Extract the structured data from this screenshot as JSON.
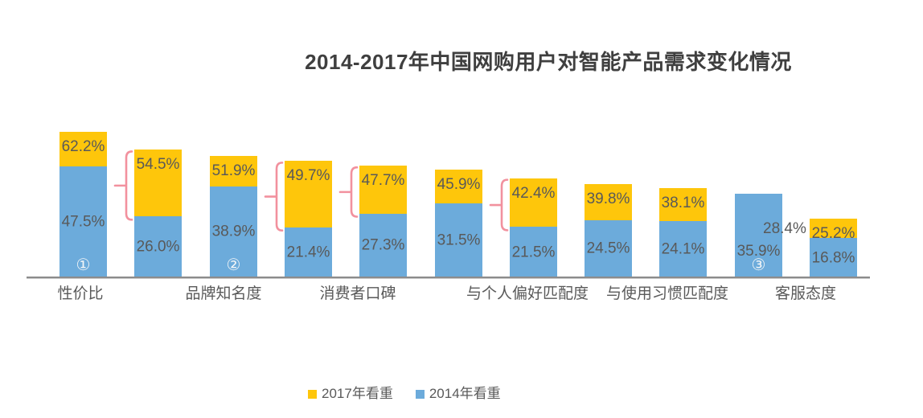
{
  "title": "2014-2017年中国网购用户对智能产品需求变化情况",
  "colors": {
    "bar_2017_yellow": "#fec60b",
    "bar_2014_blue": "#6cabdb",
    "brace_pink": "#f2919e",
    "value_label_gray": "#595959",
    "title_gray": "#3f3f3f",
    "axis_line_gray": "#8c8c8c",
    "marker_white": "#f2f5f7"
  },
  "legend": {
    "items": [
      {
        "label": "2017年看重",
        "color": "#fec60b"
      },
      {
        "label": "2014年看重",
        "color": "#6cabdb"
      }
    ]
  },
  "chart_data": {
    "type": "bar",
    "title": "2014-2017年中国网购用户对智能产品需求变化情况",
    "unit": "%",
    "ylim": [
      0,
      65
    ],
    "grid": false,
    "legend_position": "bottom-center",
    "legend_entries": [
      "2017年看重",
      "2014年看重"
    ],
    "categories": [
      "性价比",
      "品牌知名度",
      "消费者口碑",
      "与个人偏好匹配度",
      "与使用习惯匹配度",
      "客服态度"
    ],
    "bars": [
      {
        "category": "性价比",
        "y2017": 62.2,
        "y2014": 47.5,
        "label_2017": "62.2%",
        "label_2014": "47.5%",
        "marker": "①"
      },
      {
        "category": "性价比",
        "y2017": 54.5,
        "y2014": 26.0,
        "label_2017": "54.5%",
        "label_2014": "26.0%"
      },
      {
        "category": "品牌知名度",
        "y2017": 51.9,
        "y2014": 38.9,
        "label_2017": "51.9%",
        "label_2014": "38.9%",
        "marker": "②"
      },
      {
        "category": "品牌知名度",
        "y2017": 49.7,
        "y2014": 21.4,
        "label_2017": "49.7%",
        "label_2014": "21.4%"
      },
      {
        "category": "消费者口碑",
        "y2017": 47.7,
        "y2014": 27.3,
        "label_2017": "47.7%",
        "label_2014": "27.3%"
      },
      {
        "category": "消费者口碑",
        "y2017": 45.9,
        "y2014": 31.5,
        "label_2017": "45.9%",
        "label_2014": "31.5%"
      },
      {
        "category": "与个人偏好匹配度",
        "y2017": 42.4,
        "y2014": 21.5,
        "label_2017": "42.4%",
        "label_2014": "21.5%"
      },
      {
        "category": "与个人偏好匹配度",
        "y2017": 39.8,
        "y2014": 24.5,
        "label_2017": "39.8%",
        "label_2014": "24.5%"
      },
      {
        "category": "与使用习惯匹配度",
        "y2017": 38.1,
        "y2014": 24.1,
        "label_2017": "38.1%",
        "label_2014": "24.1%"
      },
      {
        "category": "与使用习惯匹配度",
        "y2017": 28.4,
        "y2014": 35.9,
        "label_2017": "28.4%",
        "label_2014": "35.9%",
        "marker": "③",
        "style": "2017_lower_than_2014_label_outside"
      },
      {
        "category": "客服态度",
        "y2017": 25.2,
        "y2014": 16.8,
        "label_2017": "25.2%",
        "label_2014": "16.8%"
      }
    ],
    "brace_annotations": {
      "description": "pink curly braces pointing left, spanning the yellow (2017 increase) segment of the bar to their right",
      "left_of_bar_indices": [
        1,
        3,
        4,
        6
      ]
    }
  }
}
